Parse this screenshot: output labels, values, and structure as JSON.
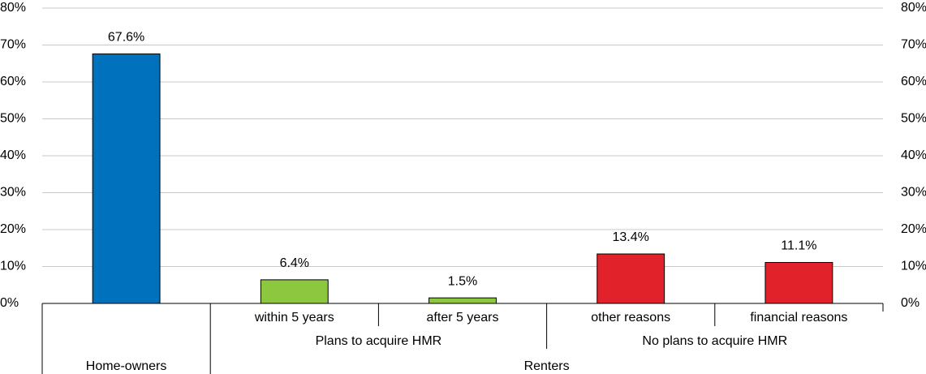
{
  "chart_data": {
    "type": "bar",
    "category_groups": [
      {
        "name": "Home-owners",
        "groups": [
          {
            "name": null,
            "categories": [
              null
            ]
          }
        ]
      },
      {
        "name": "Renters",
        "groups": [
          {
            "name": "Plans to acquire HMR",
            "categories": [
              "within 5 years",
              "after 5 years"
            ]
          },
          {
            "name": "No plans to acquire HMR",
            "categories": [
              "other reasons",
              "financial reasons"
            ]
          }
        ]
      }
    ],
    "values": [
      67.6,
      6.4,
      1.5,
      13.4,
      11.1
    ],
    "value_labels": [
      "67.6%",
      "6.4%",
      "1.5%",
      "13.4%",
      "11.1%"
    ],
    "colors": [
      "#0071bc",
      "#8dc63f",
      "#8dc63f",
      "#e2222a",
      "#e2222a"
    ],
    "ylim": [
      0,
      80
    ],
    "yticks": [
      {
        "value": 0,
        "label": "0%"
      },
      {
        "value": 10,
        "label": "10%"
      },
      {
        "value": 20,
        "label": "20%"
      },
      {
        "value": 30,
        "label": "30%"
      },
      {
        "value": 40,
        "label": "40%"
      },
      {
        "value": 50,
        "label": "50%"
      },
      {
        "value": 60,
        "label": "60%"
      },
      {
        "value": 70,
        "label": "70%"
      },
      {
        "value": 80,
        "label": "80%"
      }
    ],
    "y2lim": [
      0,
      80
    ],
    "y2ticks": [
      {
        "value": 0,
        "label": "0%"
      },
      {
        "value": 10,
        "label": "10%"
      },
      {
        "value": 20,
        "label": "20%"
      },
      {
        "value": 30,
        "label": "30%"
      },
      {
        "value": 40,
        "label": "40%"
      },
      {
        "value": 50,
        "label": "50%"
      },
      {
        "value": 60,
        "label": "60%"
      },
      {
        "value": 70,
        "label": "70%"
      },
      {
        "value": 80,
        "label": "80%"
      }
    ],
    "grid": true
  }
}
